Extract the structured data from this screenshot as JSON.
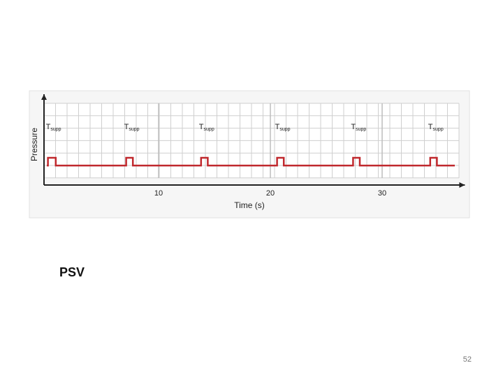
{
  "slide": {
    "title": "PSV",
    "page_number": "52"
  },
  "chart_data": {
    "type": "line",
    "x_label": "Time (s)",
    "y_label": "Pressure",
    "x": [
      0,
      0.1,
      0.1,
      0.8,
      0.8,
      7.1,
      7.1,
      7.7,
      7.7,
      13.8,
      13.8,
      14.4,
      14.4,
      20.6,
      20.6,
      21.2,
      21.2,
      27.4,
      27.4,
      28.0,
      28.0,
      34.3,
      34.3,
      34.9,
      34.9,
      36.5
    ],
    "series": [
      {
        "color": "#c0282d",
        "values": [
          1.5,
          1.5,
          2.1,
          2.1,
          1.5,
          1.5,
          2.1,
          2.1,
          1.5,
          1.5,
          2.1,
          2.1,
          1.5,
          1.5,
          2.1,
          2.1,
          1.5,
          1.5,
          2.1,
          2.1,
          1.5,
          1.5,
          2.1,
          2.1,
          1.5,
          1.5
        ]
      }
    ],
    "annotations": [
      {
        "base": "T",
        "sub": "supp"
      },
      {
        "base": "T",
        "sub": "supp"
      },
      {
        "base": "T",
        "sub": "supp"
      },
      {
        "base": "T",
        "sub": "supp"
      },
      {
        "base": "T",
        "sub": "supp"
      },
      {
        "base": "T",
        "sub": "supp"
      }
    ],
    "xlim": [
      -0.25,
      37.4
    ],
    "ylim": [
      0,
      7
    ],
    "xticks": [
      10,
      20,
      30
    ],
    "grid": true
  }
}
